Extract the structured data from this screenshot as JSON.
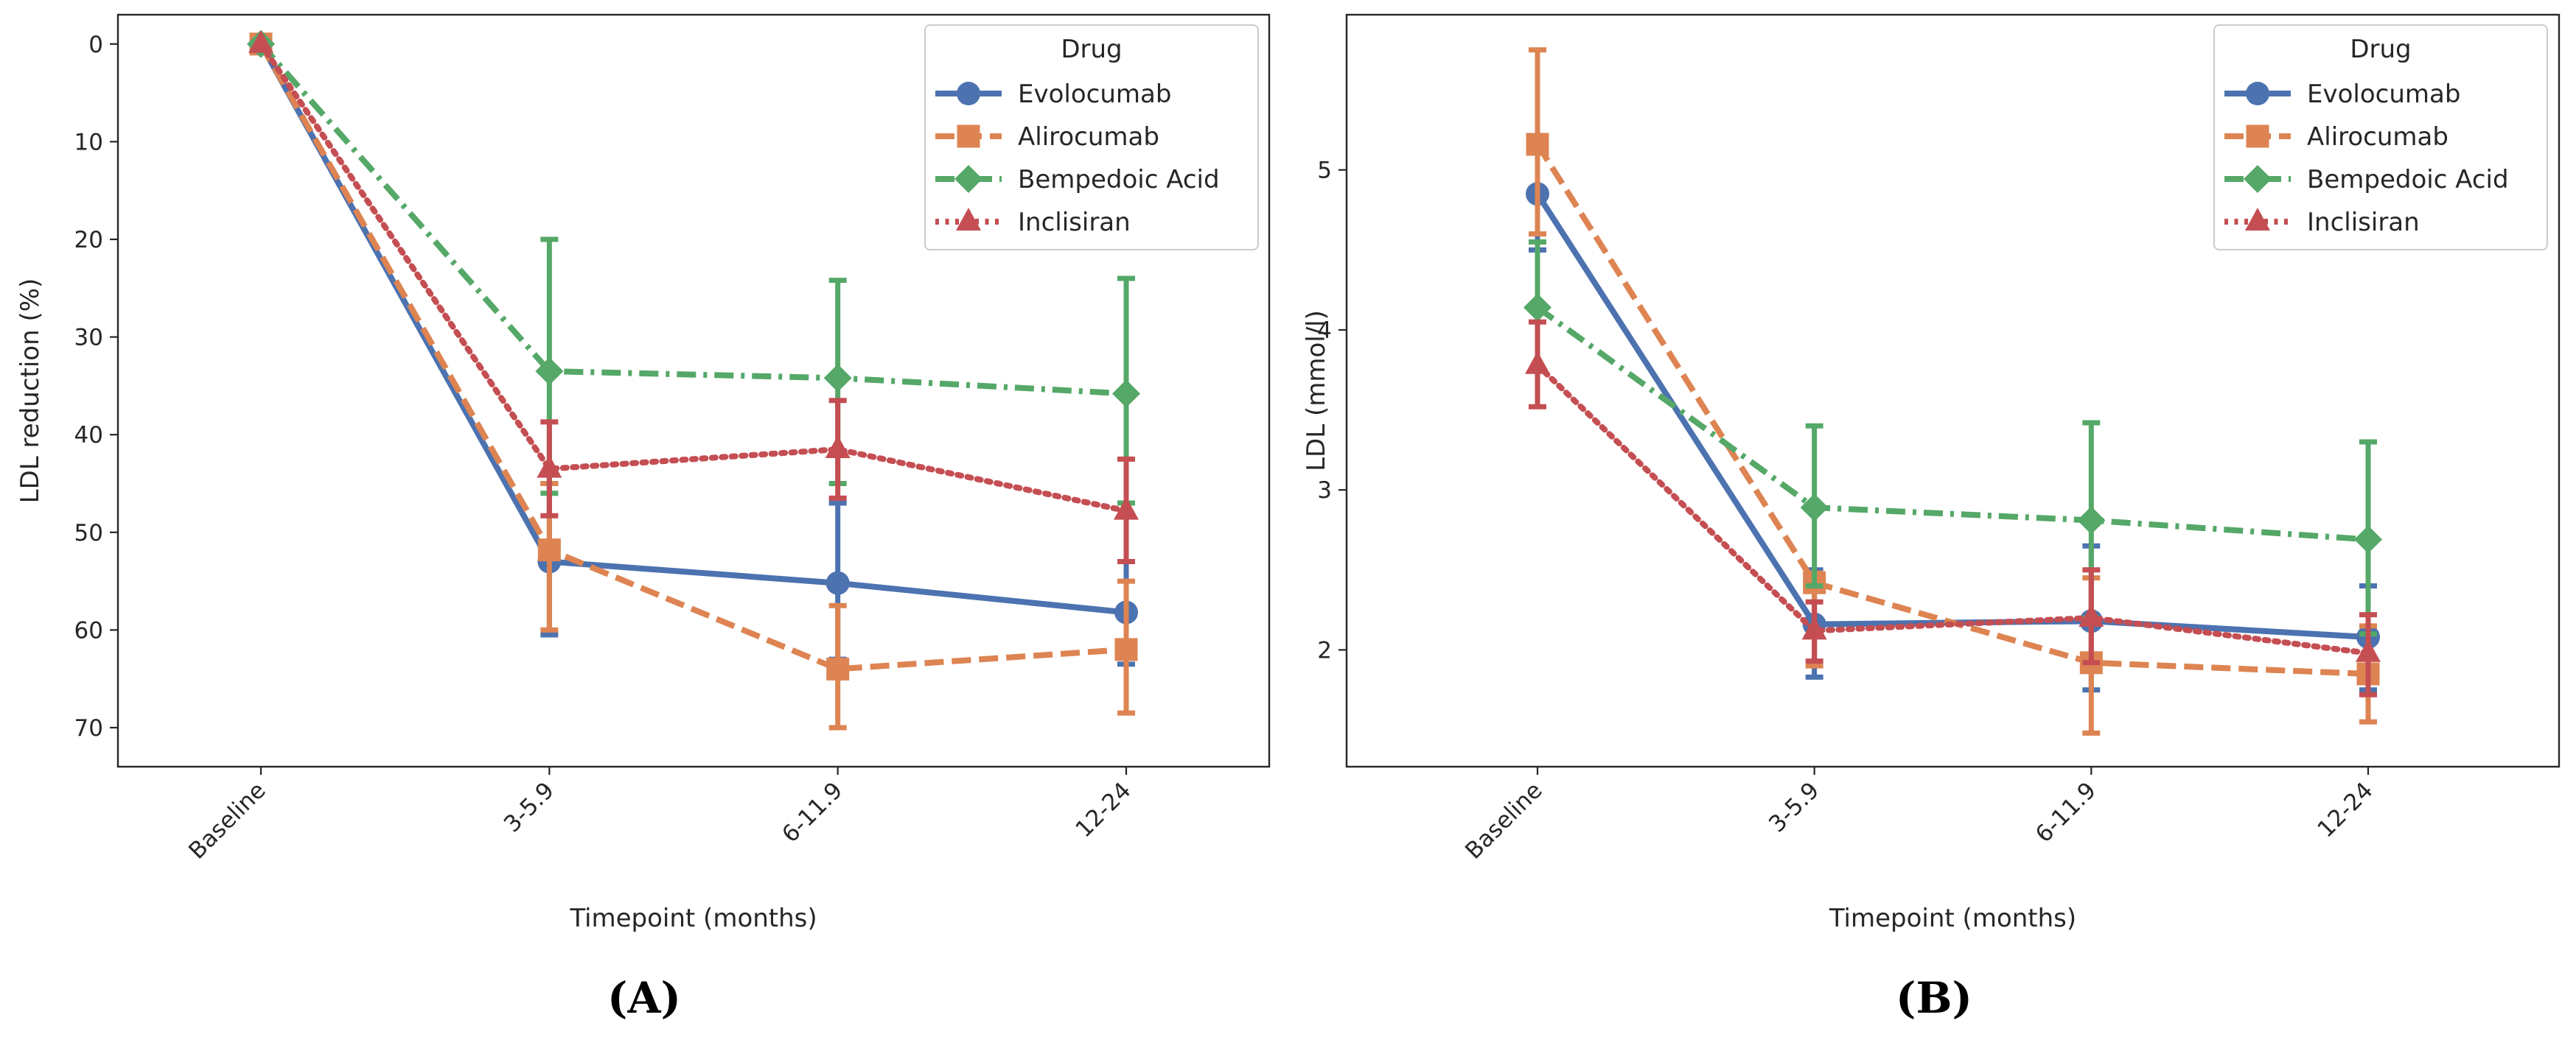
{
  "chart_data": [
    {
      "type": "line",
      "panel_label": "(A)",
      "categories": [
        "Baseline",
        "3-5.9",
        "6-11.9",
        "12-24"
      ],
      "xlabel": "Timepoint (months)",
      "ylabel": "LDL reduction (%)",
      "ylim": [
        74,
        -3
      ],
      "y_inverted": true,
      "yticks": [
        0,
        10,
        20,
        30,
        40,
        50,
        60,
        70
      ],
      "grid": false,
      "legend": {
        "title": "Drug",
        "placement": "top-right"
      },
      "series": [
        {
          "name": "Evolocumab",
          "color": "#4c72b0",
          "dash": "solid",
          "marker": "circle",
          "values": [
            0,
            53,
            55.2,
            58.2
          ],
          "err_low": [
            0,
            45,
            47,
            53
          ],
          "err_high": [
            0,
            60.5,
            63,
            63.5
          ]
        },
        {
          "name": "Alirocumab",
          "color": "#dd8452",
          "dash": "dashed",
          "marker": "square",
          "values": [
            0,
            51.8,
            64,
            62
          ],
          "err_low": [
            0,
            45,
            57.5,
            55
          ],
          "err_high": [
            0,
            60,
            70,
            68.5
          ]
        },
        {
          "name": "Bempedoic Acid",
          "color": "#55a868",
          "dash": "dashdot",
          "marker": "diamond",
          "values": [
            0,
            33.5,
            34.2,
            35.8
          ],
          "err_low": [
            0,
            20,
            24.2,
            24
          ],
          "err_high": [
            0,
            46,
            45,
            47
          ]
        },
        {
          "name": "Inclisiran",
          "color": "#c44e52",
          "dash": "dotted",
          "marker": "triangle",
          "values": [
            0,
            43.5,
            41.5,
            47.8
          ],
          "err_low": [
            0,
            38.7,
            36.5,
            42.5
          ],
          "err_high": [
            0,
            48.3,
            46.5,
            53
          ]
        }
      ]
    },
    {
      "type": "line",
      "panel_label": "(B)",
      "categories": [
        "Baseline",
        "3-5.9",
        "6-11.9",
        "12-24"
      ],
      "xlabel": "Timepoint (months)",
      "ylabel": "LDL (mmol/l)",
      "ylim": [
        1.27,
        5.97
      ],
      "y_inverted": false,
      "yticks": [
        2,
        3,
        4,
        5
      ],
      "grid": false,
      "legend": {
        "title": "Drug",
        "placement": "top-right"
      },
      "series": [
        {
          "name": "Evolocumab",
          "color": "#4c72b0",
          "dash": "solid",
          "marker": "circle",
          "values": [
            4.85,
            2.16,
            2.18,
            2.08
          ],
          "err_low": [
            4.5,
            1.83,
            1.75,
            1.75
          ],
          "err_high": [
            5.2,
            2.5,
            2.65,
            2.4
          ]
        },
        {
          "name": "Alirocumab",
          "color": "#dd8452",
          "dash": "dashed",
          "marker": "square",
          "values": [
            5.16,
            2.42,
            1.92,
            1.85
          ],
          "err_low": [
            4.6,
            1.9,
            1.48,
            1.55
          ],
          "err_high": [
            5.75,
            2.48,
            2.45,
            2.15
          ]
        },
        {
          "name": "Bempedoic Acid",
          "color": "#55a868",
          "dash": "dashdot",
          "marker": "diamond",
          "values": [
            4.14,
            2.89,
            2.81,
            2.69
          ],
          "err_low": [
            3.75,
            2.4,
            2.2,
            2.1
          ],
          "err_high": [
            4.55,
            3.4,
            3.42,
            3.3
          ]
        },
        {
          "name": "Inclisiran",
          "color": "#c44e52",
          "dash": "dotted",
          "marker": "triangle",
          "values": [
            3.78,
            2.12,
            2.2,
            1.98
          ],
          "err_low": [
            3.52,
            1.93,
            1.92,
            1.72
          ],
          "err_high": [
            4.05,
            2.3,
            2.5,
            2.22
          ]
        }
      ]
    }
  ]
}
